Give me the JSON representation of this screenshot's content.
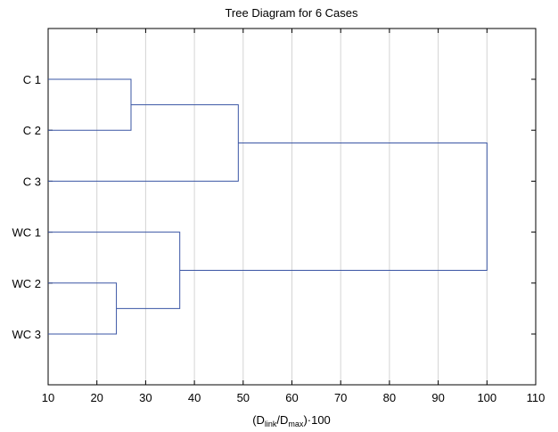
{
  "chart_data": {
    "type": "dendrogram",
    "title": "Tree Diagram for 6 Cases",
    "xlabel": {
      "main": "(D",
      "sub1": "link",
      "mid": "/D",
      "sub2": "max",
      "end": ")·100"
    },
    "xlim": [
      10,
      110
    ],
    "xticks": [
      10,
      20,
      30,
      40,
      50,
      60,
      70,
      80,
      90,
      100,
      110
    ],
    "grid": true,
    "link_color": "#3a55a4",
    "cases": [
      "C 1",
      "C 2",
      "C 3",
      "WC 1",
      "WC 2",
      "WC 3"
    ],
    "merges": [
      {
        "a": "C 1",
        "b": "C 2",
        "height": 27
      },
      {
        "a": "WC 2",
        "b": "WC 3",
        "height": 24
      },
      {
        "a": "WC 1",
        "b": "WC 2+WC 3",
        "height": 37
      },
      {
        "a": "C 1+C 2",
        "b": "C 3",
        "height": 49
      },
      {
        "a": "C group",
        "b": "WC group",
        "height": 100
      }
    ]
  }
}
